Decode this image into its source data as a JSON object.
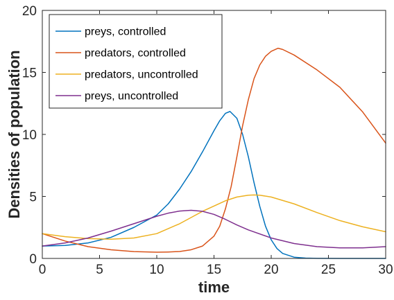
{
  "chart_data": {
    "type": "line",
    "xlabel": "time",
    "ylabel": "Densities of population",
    "xlim": [
      0,
      30
    ],
    "ylim": [
      0,
      20
    ],
    "xticks": [
      "0",
      "5",
      "10",
      "15",
      "20",
      "25",
      "30"
    ],
    "yticks": [
      "0",
      "5",
      "10",
      "15",
      "20"
    ],
    "grid": false,
    "legend_position": "top-left",
    "series": [
      {
        "name": "preys, controlled",
        "color": "#0072BD",
        "x": [
          0,
          2,
          4,
          6,
          8,
          10,
          11,
          12,
          13,
          14,
          15,
          15.5,
          16,
          16.4,
          17,
          17.5,
          18,
          18.5,
          19,
          19.5,
          20,
          20.5,
          21,
          22,
          23,
          24,
          26,
          28,
          30
        ],
        "y": [
          1.0,
          1.05,
          1.25,
          1.7,
          2.5,
          3.5,
          4.4,
          5.6,
          7.0,
          8.6,
          10.3,
          11.1,
          11.7,
          11.85,
          11.3,
          10.0,
          8.2,
          6.1,
          4.2,
          2.6,
          1.5,
          0.8,
          0.4,
          0.1,
          0.03,
          0.01,
          0.0,
          0.0,
          0.0
        ]
      },
      {
        "name": "predators, controlled",
        "color": "#D95319",
        "x": [
          0,
          2,
          4,
          6,
          8,
          10,
          11,
          12,
          13,
          14,
          15,
          15.5,
          16,
          16.5,
          17,
          17.5,
          18,
          18.5,
          19,
          19.5,
          20,
          20.6,
          21,
          22,
          24,
          26,
          28,
          30
        ],
        "y": [
          2.0,
          1.4,
          0.95,
          0.7,
          0.55,
          0.5,
          0.52,
          0.56,
          0.7,
          1.0,
          1.8,
          2.6,
          4.0,
          5.8,
          8.2,
          10.7,
          12.8,
          14.5,
          15.6,
          16.3,
          16.7,
          16.95,
          16.85,
          16.4,
          15.2,
          13.8,
          11.8,
          9.3
        ]
      },
      {
        "name": "predators, uncontrolled",
        "color": "#EDB120",
        "x": [
          0,
          2,
          4,
          6,
          8,
          10,
          12,
          14,
          16,
          17,
          18,
          18.5,
          19,
          20,
          22,
          24,
          26,
          28,
          30
        ],
        "y": [
          2.0,
          1.75,
          1.6,
          1.55,
          1.65,
          2.0,
          2.8,
          3.8,
          4.65,
          4.95,
          5.1,
          5.12,
          5.1,
          4.95,
          4.4,
          3.7,
          3.05,
          2.55,
          2.15
        ]
      },
      {
        "name": "preys, uncontrolled",
        "color": "#7E2F8E",
        "x": [
          0,
          2,
          4,
          6,
          8,
          10,
          11,
          12,
          13,
          14,
          15,
          16,
          17,
          18,
          20,
          22,
          24,
          26,
          28,
          30
        ],
        "y": [
          1.0,
          1.25,
          1.65,
          2.2,
          2.8,
          3.4,
          3.65,
          3.82,
          3.88,
          3.8,
          3.55,
          3.15,
          2.7,
          2.3,
          1.65,
          1.2,
          0.95,
          0.85,
          0.85,
          0.95
        ]
      }
    ]
  }
}
